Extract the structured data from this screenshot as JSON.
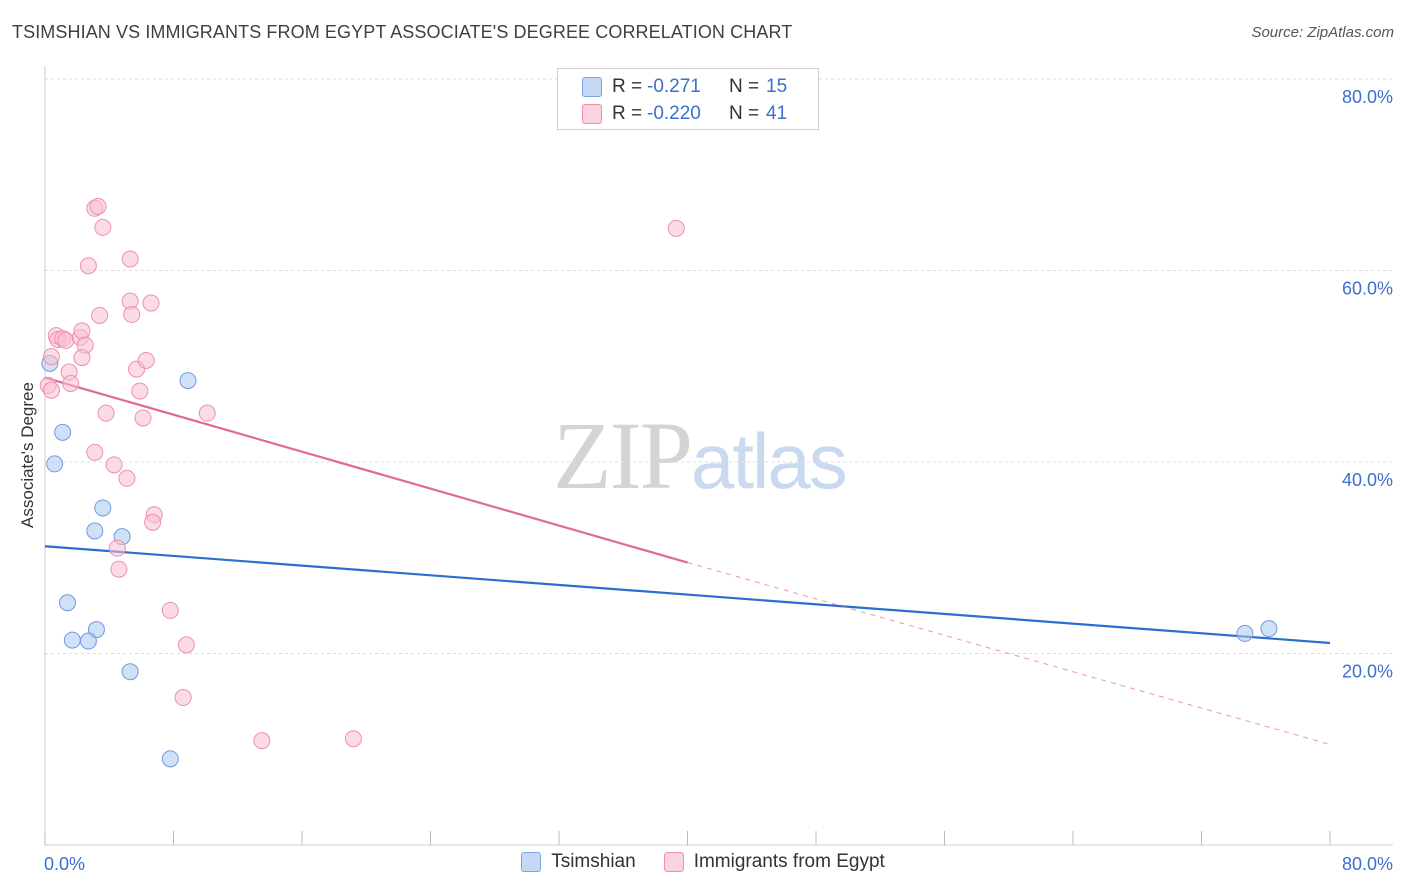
{
  "header": {
    "title": "TSIMSHIAN VS IMMIGRANTS FROM EGYPT ASSOCIATE'S DEGREE CORRELATION CHART",
    "source": "Source: ZipAtlas.com"
  },
  "watermark": {
    "zip": "ZIP",
    "atlas": "atlas"
  },
  "legend": {
    "rows": [
      {
        "r_label": "R =",
        "r_value": "-0.271",
        "n_label": "N =",
        "n_value": "15",
        "color": "#a9c7f0",
        "stroke": "#7aa6e6"
      },
      {
        "r_label": "R =",
        "r_value": "-0.220",
        "n_label": "N =",
        "n_value": "41",
        "color": "#f8bfd0",
        "stroke": "#ee8fad"
      }
    ]
  },
  "chart_data": {
    "type": "scatter",
    "title": "TSIMSHIAN VS IMMIGRANTS FROM EGYPT ASSOCIATE'S DEGREE CORRELATION CHART",
    "xlabel": "",
    "ylabel": "Associate's Degree",
    "xlim": [
      0,
      80
    ],
    "ylim": [
      0,
      80
    ],
    "x_tick_labels": [
      "0.0%",
      "80.0%"
    ],
    "y_tick_labels": [
      "20.0%",
      "40.0%",
      "60.0%",
      "80.0%"
    ],
    "y_ticks": [
      20,
      40,
      60,
      80
    ],
    "grid": true,
    "legend_position": "bottom",
    "series": [
      {
        "name": "Tsimshian",
        "color": "#a9c7f0",
        "stroke": "#6f9be0",
        "line_color": "#2d6fcc",
        "trend": {
          "x0": 0,
          "y0": 31.2,
          "x1": 80,
          "y1": 21.1
        },
        "points": [
          [
            0.3,
            50.3
          ],
          [
            1.1,
            43.1
          ],
          [
            0.6,
            39.8
          ],
          [
            8.9,
            48.5
          ],
          [
            3.6,
            35.2
          ],
          [
            3.1,
            32.8
          ],
          [
            4.8,
            32.2
          ],
          [
            1.4,
            25.3
          ],
          [
            3.2,
            22.5
          ],
          [
            1.7,
            21.4
          ],
          [
            2.7,
            21.3
          ],
          [
            5.3,
            18.1
          ],
          [
            7.8,
            9.0
          ],
          [
            74.7,
            22.1
          ],
          [
            76.2,
            22.6
          ]
        ]
      },
      {
        "name": "Immigrants from Egypt",
        "color": "#f8bfd0",
        "stroke": "#ee8fad",
        "line_color": "#e06a93",
        "trend": {
          "x0": 0,
          "y0": 48.8,
          "x1": 40,
          "y1": 29.5
        },
        "trend_dashed": {
          "x0": 40,
          "y0": 29.5,
          "x1": 80,
          "y1": 10.5
        },
        "points": [
          [
            0.2,
            48.0
          ],
          [
            0.4,
            51.0
          ],
          [
            0.7,
            53.2
          ],
          [
            0.8,
            52.8
          ],
          [
            1.1,
            52.9
          ],
          [
            1.3,
            52.7
          ],
          [
            1.5,
            49.4
          ],
          [
            1.6,
            48.2
          ],
          [
            2.2,
            53.0
          ],
          [
            2.3,
            53.7
          ],
          [
            2.5,
            52.2
          ],
          [
            2.3,
            50.9
          ],
          [
            2.7,
            60.5
          ],
          [
            3.1,
            66.5
          ],
          [
            3.3,
            66.7
          ],
          [
            3.6,
            64.5
          ],
          [
            3.4,
            55.3
          ],
          [
            3.8,
            45.1
          ],
          [
            3.1,
            41.0
          ],
          [
            4.3,
            39.7
          ],
          [
            5.1,
            38.3
          ],
          [
            4.5,
            31.0
          ],
          [
            4.6,
            28.8
          ],
          [
            5.3,
            61.2
          ],
          [
            5.3,
            56.8
          ],
          [
            5.4,
            55.4
          ],
          [
            6.6,
            56.6
          ],
          [
            5.7,
            49.7
          ],
          [
            6.3,
            50.6
          ],
          [
            5.9,
            47.4
          ],
          [
            6.1,
            44.6
          ],
          [
            10.1,
            45.1
          ],
          [
            6.8,
            34.5
          ],
          [
            6.7,
            33.7
          ],
          [
            7.8,
            24.5
          ],
          [
            8.8,
            20.9
          ],
          [
            8.6,
            15.4
          ],
          [
            13.5,
            10.9
          ],
          [
            19.2,
            11.1
          ],
          [
            39.3,
            64.4
          ],
          [
            0.4,
            47.5
          ]
        ]
      }
    ]
  }
}
